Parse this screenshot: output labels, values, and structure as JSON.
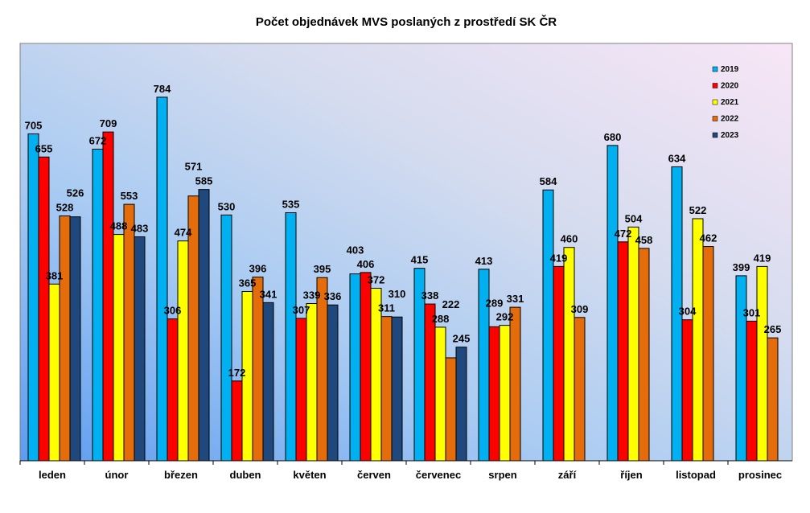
{
  "chart_data": {
    "type": "bar",
    "title": "Počet objednávek MVS poslaných z prostředí SK ČR",
    "xlabel": "",
    "ylabel": "",
    "ylim": [
      0,
      900
    ],
    "grid": false,
    "legend": "top-right",
    "categories": [
      "leden",
      "únor",
      "březen",
      "duben",
      "květen",
      "červen",
      "červenec",
      "srpen",
      "září",
      "říjen",
      "listopad",
      "prosinec"
    ],
    "series": [
      {
        "name": "2019",
        "color": "#00b0f0",
        "values": [
          705,
          672,
          784,
          530,
          535,
          403,
          415,
          413,
          584,
          680,
          634,
          399
        ]
      },
      {
        "name": "2020",
        "color": "#ff0000",
        "values": [
          655,
          709,
          306,
          172,
          307,
          406,
          338,
          289,
          419,
          472,
          304,
          301
        ]
      },
      {
        "name": "2021",
        "color": "#ffff00",
        "values": [
          381,
          488,
          474,
          365,
          339,
          372,
          288,
          292,
          460,
          504,
          522,
          419
        ]
      },
      {
        "name": "2022",
        "color": "#e46c0a",
        "values": [
          528,
          553,
          571,
          396,
          395,
          311,
          222,
          331,
          309,
          458,
          462,
          265
        ]
      },
      {
        "name": "2023",
        "color": "#1f497d",
        "values": [
          526,
          483,
          585,
          341,
          336,
          310,
          245,
          null,
          null,
          null,
          null,
          null
        ]
      }
    ]
  }
}
